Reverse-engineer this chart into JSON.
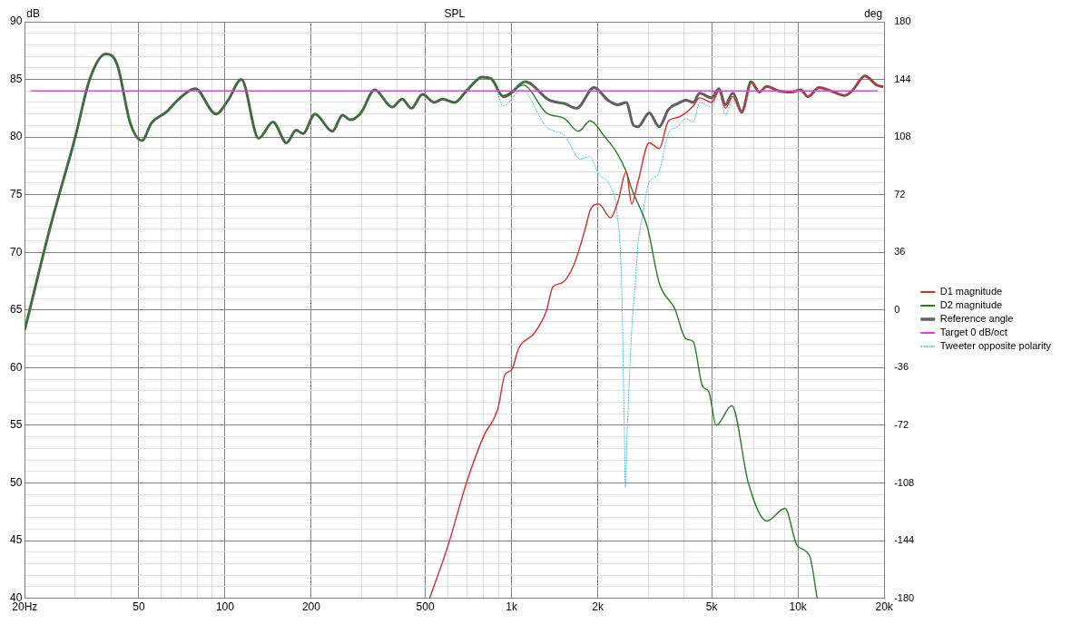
{
  "chart_data": {
    "type": "line",
    "title": "SPL",
    "ylabel": "dB",
    "y2label": "deg",
    "log": "x",
    "grid": true,
    "legend": "right",
    "marker": "none",
    "xlim": [
      20,
      20000
    ],
    "xticks": [
      {
        "value": 20,
        "label": "20Hz"
      },
      {
        "value": 30,
        "label": null
      },
      {
        "value": 40,
        "label": null
      },
      50,
      {
        "value": 60,
        "label": null
      },
      {
        "value": 70,
        "label": null
      },
      {
        "value": 80,
        "label": null
      },
      {
        "value": 90,
        "label": null
      },
      100,
      200,
      {
        "value": 300,
        "label": null
      },
      {
        "value": 400,
        "label": null
      },
      500,
      {
        "value": 600,
        "label": null
      },
      {
        "value": 700,
        "label": null
      },
      {
        "value": 800,
        "label": null
      },
      {
        "value": 900,
        "label": null
      },
      {
        "value": 1000,
        "label": "1k"
      },
      {
        "value": 2000,
        "label": "2k"
      },
      {
        "value": 3000,
        "label": null
      },
      {
        "value": 4000,
        "label": null
      },
      {
        "value": 5000,
        "label": "5k"
      },
      {
        "value": 6000,
        "label": null
      },
      {
        "value": 7000,
        "label": null
      },
      {
        "value": 8000,
        "label": null
      },
      {
        "value": 9000,
        "label": null
      },
      {
        "value": 10000,
        "label": "10k"
      },
      {
        "value": 20000,
        "label": "20k"
      }
    ],
    "ylim": [
      40,
      90
    ],
    "yticks": [
      40,
      {
        "value": 41,
        "label": null
      },
      {
        "value": 42,
        "label": null
      },
      {
        "value": 43,
        "label": null
      },
      {
        "value": 44,
        "label": null
      },
      45,
      {
        "value": 46,
        "label": null
      },
      {
        "value": 47,
        "label": null
      },
      {
        "value": 48,
        "label": null
      },
      {
        "value": 49,
        "label": null
      },
      50,
      {
        "value": 51,
        "label": null
      },
      {
        "value": 52,
        "label": null
      },
      {
        "value": 53,
        "label": null
      },
      {
        "value": 54,
        "label": null
      },
      55,
      {
        "value": 56,
        "label": null
      },
      {
        "value": 57,
        "label": null
      },
      {
        "value": 58,
        "label": null
      },
      {
        "value": 59,
        "label": null
      },
      60,
      {
        "value": 61,
        "label": null
      },
      {
        "value": 62,
        "label": null
      },
      {
        "value": 63,
        "label": null
      },
      {
        "value": 64,
        "label": null
      },
      65,
      {
        "value": 66,
        "label": null
      },
      {
        "value": 67,
        "label": null
      },
      {
        "value": 68,
        "label": null
      },
      {
        "value": 69,
        "label": null
      },
      70,
      {
        "value": 71,
        "label": null
      },
      {
        "value": 72,
        "label": null
      },
      {
        "value": 73,
        "label": null
      },
      {
        "value": 74,
        "label": null
      },
      75,
      {
        "value": 76,
        "label": null
      },
      {
        "value": 77,
        "label": null
      },
      {
        "value": 78,
        "label": null
      },
      {
        "value": 79,
        "label": null
      },
      80,
      {
        "value": 81,
        "label": null
      },
      {
        "value": 82,
        "label": null
      },
      {
        "value": 83,
        "label": null
      },
      {
        "value": 84,
        "label": null
      },
      85,
      {
        "value": 86,
        "label": null
      },
      {
        "value": 87,
        "label": null
      },
      {
        "value": 88,
        "label": null
      },
      {
        "value": 89,
        "label": null
      },
      90
    ],
    "y2lim": [
      -180,
      180
    ],
    "y2ticks": [
      -180,
      -144,
      -108,
      -72,
      -36,
      0,
      36,
      72,
      108,
      144,
      180
    ],
    "series": [
      {
        "name": "Reference angle",
        "color": "#606060",
        "line_style": "solid",
        "x": [
          20,
          24.6,
          30,
          33.7,
          38.3,
          42,
          46.7,
          51.3,
          55.3,
          62.6,
          69,
          78.6,
          93,
          102.5,
          114,
          131,
          147,
          164,
          177,
          187,
          206,
          237,
          257,
          274,
          298,
          333,
          383,
          415,
          447,
          489,
          538,
          575,
          632,
          696,
          790,
          850,
          935,
          985,
          1116,
          1353,
          1533,
          1688,
          1942,
          2170,
          2352,
          2514,
          2668,
          2768,
          3024,
          3278,
          3530,
          3800,
          4062,
          4309,
          4538,
          4994,
          5298,
          5580,
          5918,
          6372,
          6861,
          7332,
          7776,
          8561,
          9496,
          10218,
          10841,
          11844,
          13330,
          14562,
          15440,
          17128,
          18856,
          19860
        ],
        "values": [
          63.3,
          72.3,
          80,
          85,
          87.2,
          86.3,
          81.2,
          79.7,
          81.2,
          82.2,
          83.3,
          84.2,
          82,
          83.2,
          85,
          79.9,
          81.3,
          79.5,
          80.6,
          80.3,
          82,
          80.5,
          81.9,
          81.5,
          82.1,
          84.1,
          82.6,
          83.3,
          82.5,
          83.7,
          83.0,
          83.3,
          83.0,
          84.0,
          85.2,
          85.05,
          83.5,
          83.7,
          84.8,
          83.2,
          82.9,
          82.5,
          84.3,
          83.2,
          82.8,
          83.0,
          81.0,
          80.9,
          82.1,
          80.9,
          82.4,
          82.9,
          83.2,
          83.0,
          83.8,
          83.4,
          84.2,
          82.8,
          83.8,
          82.2,
          84.8,
          83.9,
          84.4,
          84.0,
          83.9,
          84.1,
          83.5,
          84.3,
          83.9,
          83.6,
          84.0,
          85.3,
          84.5,
          84.35
        ]
      },
      {
        "name": "Tweeter opposite polarity",
        "color": "#3cbfe0",
        "line_style": "dashed",
        "x": [
          890,
          935,
          1084,
          1323,
          1533,
          1738,
          1873,
          2015,
          2217,
          2336,
          2423,
          2478,
          2496,
          2533,
          2628,
          2706,
          2768,
          2829,
          3024,
          3254,
          3530,
          3800,
          4062,
          4309,
          4538,
          4994,
          5298,
          5580,
          5918,
          6372,
          6861
        ],
        "values": [
          84.0,
          82.7,
          84.1,
          80.9,
          80.1,
          78.1,
          78.3,
          76.8,
          75.7,
          73.4,
          67.2,
          54.3,
          49.6,
          54.3,
          63.3,
          67.4,
          70.9,
          72.4,
          76.1,
          76.8,
          80.3,
          80.9,
          81.6,
          81.3,
          83.0,
          82.6,
          83.9,
          81.9,
          83.2,
          82.0,
          84.7
        ]
      },
      {
        "name": "D2 magnitude",
        "color": "#2a7a2a",
        "line_style": "solid",
        "x": [
          20,
          24.6,
          30,
          33.7,
          38.3,
          42,
          46.7,
          51.3,
          55.3,
          62.6,
          69,
          78.6,
          93,
          102.5,
          114,
          131,
          147,
          164,
          177,
          187,
          206,
          237,
          257,
          274,
          298,
          333,
          383,
          415,
          447,
          489,
          538,
          575,
          632,
          696,
          790,
          850,
          935,
          1100,
          1323,
          1533,
          1712,
          1885,
          2106,
          2336,
          2514,
          2628,
          2768,
          2980,
          3278,
          3716,
          4062,
          4309,
          4640,
          4886,
          5180,
          5876,
          6710,
          7776,
          9014,
          9920,
          11000,
          11668
        ],
        "values": [
          63.3,
          72.3,
          80,
          85,
          87.2,
          86.3,
          81.2,
          79.7,
          81.2,
          82.2,
          83.3,
          84.2,
          82,
          83.2,
          85,
          79.9,
          81.3,
          79.5,
          80.6,
          80.3,
          82,
          80.5,
          81.9,
          81.5,
          82.1,
          84.1,
          82.6,
          83.3,
          82.5,
          83.7,
          83.0,
          83.3,
          83.0,
          84.0,
          85.2,
          85.05,
          83.6,
          84.5,
          82.1,
          81.6,
          80.5,
          81.4,
          80.1,
          78.6,
          77.0,
          75.5,
          74.2,
          72.2,
          67.35,
          65.1,
          62.5,
          62.25,
          58.4,
          57.9,
          55.0,
          56.7,
          50.0,
          46.7,
          47.8,
          44.6,
          43.6,
          40.0
        ]
      },
      {
        "name": "D1 magnitude",
        "color": "#e02828",
        "line_style": "solid",
        "x": [
          518,
          601,
          696,
          801,
          895,
          949,
          1000,
          1060,
          1202,
          1323,
          1394,
          1500,
          1650,
          1816,
          1885,
          2015,
          2217,
          2352,
          2514,
          2628,
          2768,
          3024,
          3278,
          3530,
          3800,
          4062,
          4309,
          4538,
          4994,
          5298,
          5580,
          5918,
          6372,
          6861,
          7332,
          7776,
          8561,
          9496,
          10218,
          10841,
          11844,
          13330,
          14562,
          15440,
          17128,
          18856,
          19860
        ],
        "values": [
          40.0,
          44.6,
          50.0,
          54.1,
          56.4,
          59.4,
          59.8,
          61.7,
          63.0,
          64.9,
          67.0,
          67.35,
          68.9,
          72.2,
          73.7,
          74.2,
          73.0,
          74.4,
          77.0,
          74.2,
          76.2,
          79.5,
          79.0,
          81.4,
          81.7,
          82.1,
          82.7,
          83.4,
          83.0,
          84.0,
          82.5,
          83.5,
          82.1,
          84.7,
          83.9,
          84.4,
          84.0,
          83.9,
          84.1,
          83.5,
          84.3,
          83.9,
          83.6,
          84.0,
          85.3,
          84.5,
          84.35
        ]
      },
      {
        "name": "Target 0 dB/oct",
        "color": "#e040e0",
        "line_style": "solid",
        "x": [
          21,
          19000
        ],
        "values": [
          84,
          84
        ]
      }
    ]
  }
}
